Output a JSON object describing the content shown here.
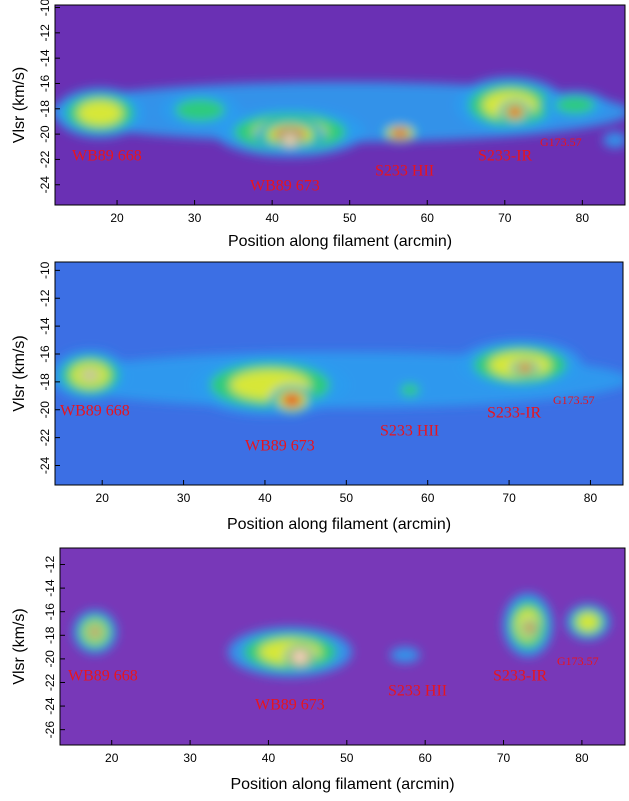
{
  "chart_data": [
    {
      "type": "heatmap",
      "xlabel": "Position along filament (arcmin)",
      "ylabel": "Vlsr (km/s)",
      "xlim": [
        12.0,
        85.5
      ],
      "ylim": [
        -25.6,
        -9.8
      ],
      "xticks": [
        20,
        30,
        40,
        50,
        60,
        70,
        80
      ],
      "yticks": [
        -24,
        -22,
        -20,
        -18,
        -16,
        -14,
        -12,
        -10
      ],
      "annotations": [
        "WB89 668",
        "WB89 673",
        "S233 HII",
        "S233-IR",
        "G173.57"
      ]
    },
    {
      "type": "heatmap",
      "xlabel": "Position along filament (arcmin)",
      "ylabel": "Vlsr (km/s)",
      "xlim": [
        14.2,
        84.0
      ],
      "ylim": [
        -25.4,
        -9.4
      ],
      "xticks": [
        20,
        30,
        40,
        50,
        60,
        70,
        80
      ],
      "yticks": [
        -24,
        -22,
        -20,
        -18,
        -16,
        -14,
        -12,
        -10
      ],
      "annotations": [
        "WB89 668",
        "WB89 673",
        "S233 HII",
        "S233-IR",
        "G173.57"
      ]
    },
    {
      "type": "heatmap",
      "xlabel": "Position along filament (arcmin)",
      "ylabel": "Vlsr (km/s)",
      "xlim": [
        13.4,
        85.5
      ],
      "ylim": [
        -27.3,
        -10.6
      ],
      "xticks": [
        20,
        30,
        40,
        50,
        60,
        70,
        80
      ],
      "yticks": [
        -26,
        -24,
        -22,
        -20,
        -18,
        -16,
        -14,
        -12
      ],
      "annotations": [
        "WB89 668",
        "WB89 673",
        "S233 HII",
        "S233-IR",
        "G173.57"
      ]
    }
  ]
}
